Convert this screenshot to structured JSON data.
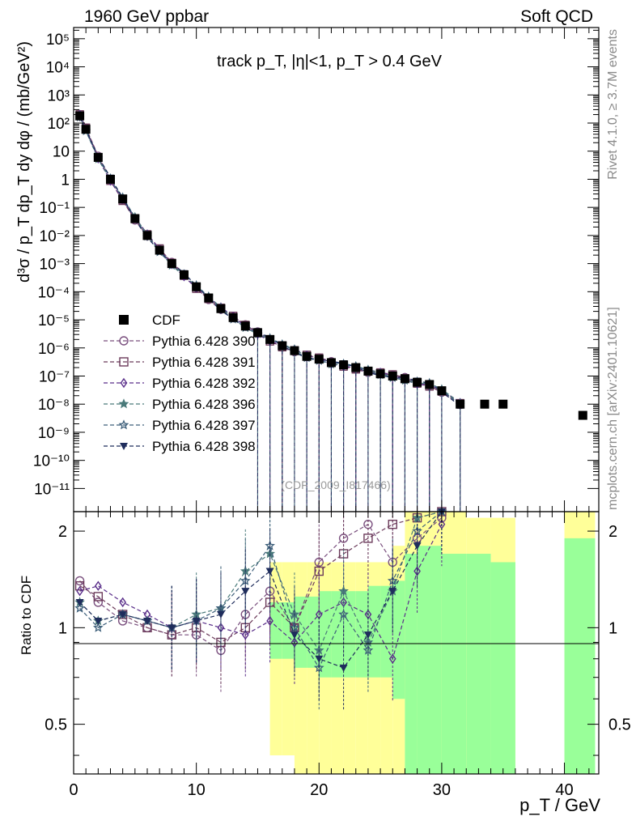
{
  "header": {
    "left": "1960 GeV ppbar",
    "right": "Soft QCD"
  },
  "side_labels": {
    "rivet": "Rivet 4.1.0, ≥ 3.7M events",
    "mcplots": "mcplots.cern.ch [arXiv:2401.10621]"
  },
  "watermark": "(CDF_2009_I817466)",
  "colors": {
    "data": "#000000",
    "p390": "#7a4f7e",
    "p391": "#6b3a5a",
    "p392": "#5a2f8a",
    "p396": "#4a7a7a",
    "p397": "#3d5f7a",
    "p398": "#1f2d5c",
    "band_yellow": "#ffff99",
    "band_green": "#99ff99"
  },
  "chart_data": [
    {
      "type": "scatter",
      "panel": "main",
      "title": "track p_T, |η|<1, p_T > 0.4 GeV",
      "xlabel": "p_T / GeV",
      "ylabel": "d³σ / p_T dp_T dy dφ / (mb/GeV²)",
      "xlim": [
        0,
        42.8
      ],
      "ylim": [
        1.5e-12,
        250000.0
      ],
      "yscale": "log",
      "x_ticks": [
        0,
        10,
        20,
        30,
        40
      ],
      "y_tick_labels": [
        "10⁻¹¹",
        "10⁻¹⁰",
        "10⁻⁹",
        "10⁻⁸",
        "10⁻⁷",
        "10⁻⁶",
        "10⁻⁵",
        "10⁻⁴",
        "10⁻³",
        "10⁻²",
        "10⁻¹",
        "1",
        "10",
        "10²",
        "10³",
        "10⁴",
        "10⁵"
      ],
      "legend_position": "middle-left",
      "series": [
        {
          "name": "CDF",
          "marker": "square",
          "x": [
            0.5,
            1,
            2,
            3,
            4,
            5,
            6,
            7,
            8,
            9,
            10,
            11,
            12,
            13,
            14,
            15,
            16,
            17,
            18,
            19,
            20,
            21,
            22,
            23,
            24,
            25,
            26,
            27,
            28,
            29,
            30,
            31.5,
            33.5,
            35,
            41.5
          ],
          "y": [
            180,
            60,
            6,
            1,
            0.2,
            0.04,
            0.01,
            0.003,
            0.001,
            0.0004,
            0.00015,
            6e-05,
            2.5e-05,
            1.2e-05,
            6e-06,
            3.5e-06,
            2e-06,
            1.2e-06,
            8e-07,
            5e-07,
            4e-07,
            3e-07,
            2.5e-07,
            2e-07,
            1.5e-07,
            1.2e-07,
            1e-07,
            8e-08,
            6e-08,
            5e-08,
            3e-08,
            1e-08,
            1e-08,
            1e-08,
            4e-09
          ]
        },
        {
          "name": "Pythia 6.428 390",
          "marker": "circle-open"
        },
        {
          "name": "Pythia 6.428 391",
          "marker": "square-open"
        },
        {
          "name": "Pythia 6.428 392",
          "marker": "diamond-open"
        },
        {
          "name": "Pythia 6.428 396",
          "marker": "star-filled"
        },
        {
          "name": "Pythia 6.428 397",
          "marker": "star-open"
        },
        {
          "name": "Pythia 6.428 398",
          "marker": "triangle-down"
        }
      ]
    },
    {
      "type": "line",
      "panel": "ratio",
      "ylabel": "Ratio to CDF",
      "xlabel": "p_T / GeV",
      "xlim": [
        0,
        42.8
      ],
      "ylim": [
        0.35,
        2.3
      ],
      "yscale": "log",
      "y_ticks": [
        0.5,
        1,
        2
      ],
      "x_ticks": [
        0,
        10,
        20,
        30,
        40
      ],
      "reference": 1,
      "bands": {
        "edges": [
          16,
          17,
          18,
          19,
          20,
          21,
          22,
          23,
          24,
          25,
          26,
          27,
          28,
          30,
          32,
          34,
          36,
          40,
          42.5
        ],
        "yellow": [
          [
            0.4,
            1.6
          ],
          [
            0.4,
            1.6
          ],
          [
            0.3,
            1.6
          ],
          [
            0.3,
            1.6
          ],
          [
            0.3,
            1.6
          ],
          [
            0.3,
            1.6
          ],
          [
            0.3,
            1.6
          ],
          [
            0.3,
            1.6
          ],
          [
            0.3,
            1.6
          ],
          [
            0.3,
            1.6
          ],
          [
            0.3,
            1.8
          ],
          [
            0.3,
            2.3
          ],
          [
            0.3,
            2.3
          ],
          [
            0.3,
            2.3
          ],
          [
            0.3,
            2.2
          ],
          [
            0.3,
            2.2
          ],
          [
            0,
            0
          ],
          [
            0.3,
            2.3
          ]
        ],
        "green": [
          [
            0.8,
            1.2
          ],
          [
            0.8,
            1.2
          ],
          [
            0.75,
            1.25
          ],
          [
            0.75,
            1.25
          ],
          [
            0.7,
            1.3
          ],
          [
            0.7,
            1.3
          ],
          [
            0.7,
            1.3
          ],
          [
            0.7,
            1.3
          ],
          [
            0.7,
            1.35
          ],
          [
            0.7,
            1.35
          ],
          [
            0.6,
            1.4
          ],
          [
            0.3,
            1.7
          ],
          [
            0.3,
            1.8
          ],
          [
            0.3,
            1.7
          ],
          [
            0.3,
            1.7
          ],
          [
            0.3,
            1.6
          ],
          [
            0,
            0
          ],
          [
            0.3,
            1.9
          ]
        ]
      },
      "series": [
        {
          "name": "Pythia 6.428 390",
          "x": [
            0.5,
            2,
            4,
            6,
            8,
            10,
            12,
            14,
            16,
            18,
            20,
            22,
            24,
            26,
            28,
            30
          ],
          "y": [
            1.4,
            1.2,
            1.05,
            1.0,
            0.95,
            0.95,
            0.85,
            1.1,
            1.3,
            1.0,
            1.6,
            1.9,
            2.1,
            1.6,
            1.9,
            2.2
          ]
        },
        {
          "name": "Pythia 6.428 391",
          "x": [
            0.5,
            2,
            4,
            6,
            8,
            10,
            12,
            14,
            16,
            18,
            20,
            22,
            24,
            26,
            28,
            30
          ],
          "y": [
            1.35,
            1.25,
            1.1,
            1.0,
            0.95,
            1.0,
            0.9,
            1.0,
            1.2,
            1.0,
            1.5,
            1.7,
            1.9,
            2.1,
            2.2,
            2.3
          ]
        },
        {
          "name": "Pythia 6.428 392",
          "x": [
            0.5,
            2,
            4,
            6,
            8,
            10,
            12,
            14,
            16,
            18,
            20,
            22,
            24,
            26,
            28,
            30
          ],
          "y": [
            1.3,
            1.35,
            1.2,
            1.1,
            1.0,
            1.05,
            1.0,
            0.95,
            1.05,
            0.9,
            1.1,
            1.2,
            1.1,
            0.8,
            1.5,
            2.1
          ]
        },
        {
          "name": "Pythia 6.428 396",
          "x": [
            0.5,
            2,
            4,
            6,
            8,
            10,
            12,
            14,
            16,
            18,
            20,
            22,
            24,
            26,
            28,
            30
          ],
          "y": [
            1.2,
            1.05,
            1.1,
            1.05,
            1.0,
            1.1,
            1.15,
            1.5,
            1.7,
            1.1,
            0.85,
            1.3,
            0.9,
            1.3,
            2.2,
            2.3
          ]
        },
        {
          "name": "Pythia 6.428 397",
          "x": [
            0.5,
            2,
            4,
            6,
            8,
            10,
            12,
            14,
            16,
            18,
            20,
            22,
            24,
            26,
            28,
            30
          ],
          "y": [
            1.15,
            1.0,
            1.1,
            1.05,
            1.0,
            1.05,
            1.15,
            1.4,
            1.8,
            1.0,
            0.75,
            1.1,
            0.85,
            1.4,
            2.0,
            2.3
          ]
        },
        {
          "name": "Pythia 6.428 398",
          "x": [
            0.5,
            2,
            4,
            6,
            8,
            10,
            12,
            14,
            16,
            18,
            20,
            22,
            24,
            26,
            28,
            30
          ],
          "y": [
            1.2,
            1.05,
            1.1,
            1.05,
            1.0,
            1.05,
            1.1,
            1.3,
            1.5,
            0.95,
            0.8,
            0.75,
            0.95,
            1.3,
            1.8,
            2.3
          ]
        }
      ]
    }
  ]
}
